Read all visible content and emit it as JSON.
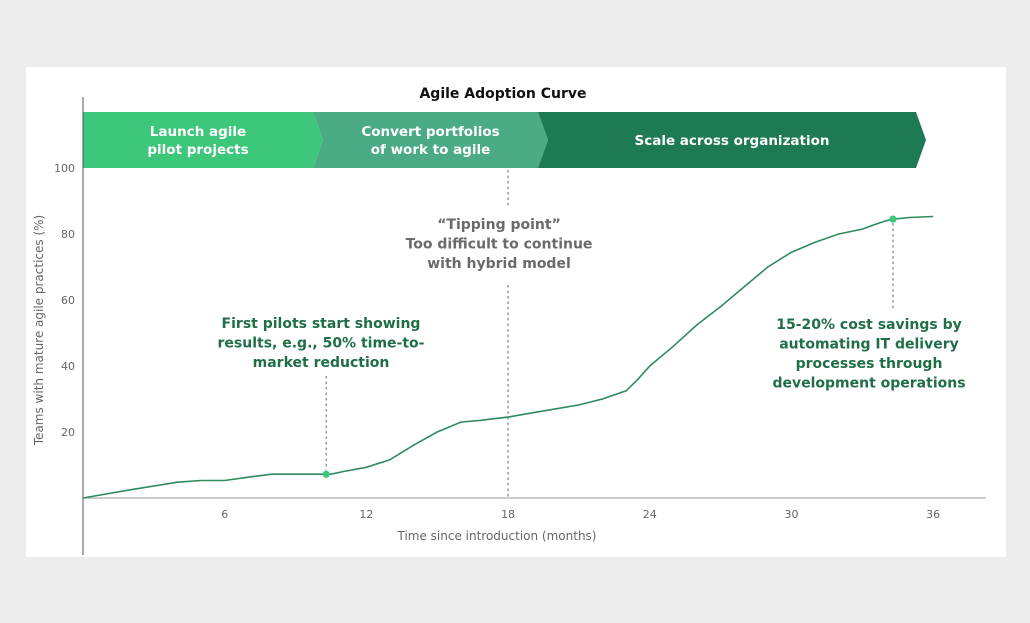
{
  "chart_data": {
    "type": "line",
    "title": "Agile Adoption Curve",
    "xlabel": "Time since introduction (months)",
    "ylabel": "Teams with mature agile practices (%)",
    "xlim": [
      0,
      39
    ],
    "ylim": [
      0,
      100
    ],
    "x_ticks": [
      "6",
      "12",
      "18",
      "24",
      "30",
      "36"
    ],
    "y_ticks": [
      "20",
      "40",
      "60",
      "80",
      "100"
    ],
    "grid": false,
    "series": [
      {
        "color": "#2e8b5e",
        "x": [
          0,
          2,
          4,
          5,
          6,
          7,
          8,
          10.5,
          11,
          12,
          13,
          14,
          15,
          16,
          16.8,
          18,
          19,
          20,
          21,
          22,
          23,
          23.5,
          24,
          25,
          26,
          27,
          28,
          29,
          30,
          31,
          32,
          33,
          33.5,
          34,
          34.3,
          35,
          36
        ],
        "y": [
          0,
          2.5,
          4.8,
          5.3,
          5.3,
          6.3,
          7.2,
          7.2,
          8,
          9.3,
          11.6,
          16,
          20,
          23,
          23.5,
          24.5,
          25.8,
          27,
          28.2,
          30,
          32.5,
          36,
          40,
          46,
          52.5,
          58,
          64,
          70,
          74.5,
          77.5,
          80,
          81.5,
          82.8,
          84,
          84.5,
          85,
          85.3
        ]
      }
    ],
    "phases": [
      {
        "lines": [
          "Launch agile",
          "pilot projects"
        ],
        "color": "#3cc77a"
      },
      {
        "lines": [
          "Convert portfolios",
          "of work to agile"
        ],
        "color": "#4aab84"
      },
      {
        "lines": [
          "Scale across organization"
        ],
        "color": "#1d7a52"
      }
    ],
    "annotations": [
      {
        "lines": [
          "First pilots start showing",
          "results, e.g., 50% time-to-",
          "market reduction"
        ],
        "x": 10.3,
        "y": 7.2,
        "style": "green"
      },
      {
        "lines": [
          "“Tipping point”",
          "Too difficult to continue",
          "with hybrid model"
        ],
        "x": 18,
        "style": "gray"
      },
      {
        "lines": [
          "15-20% cost savings by",
          "automating IT delivery",
          "processes through",
          "development operations"
        ],
        "x": 34.3,
        "y": 84.5,
        "style": "green"
      }
    ]
  }
}
